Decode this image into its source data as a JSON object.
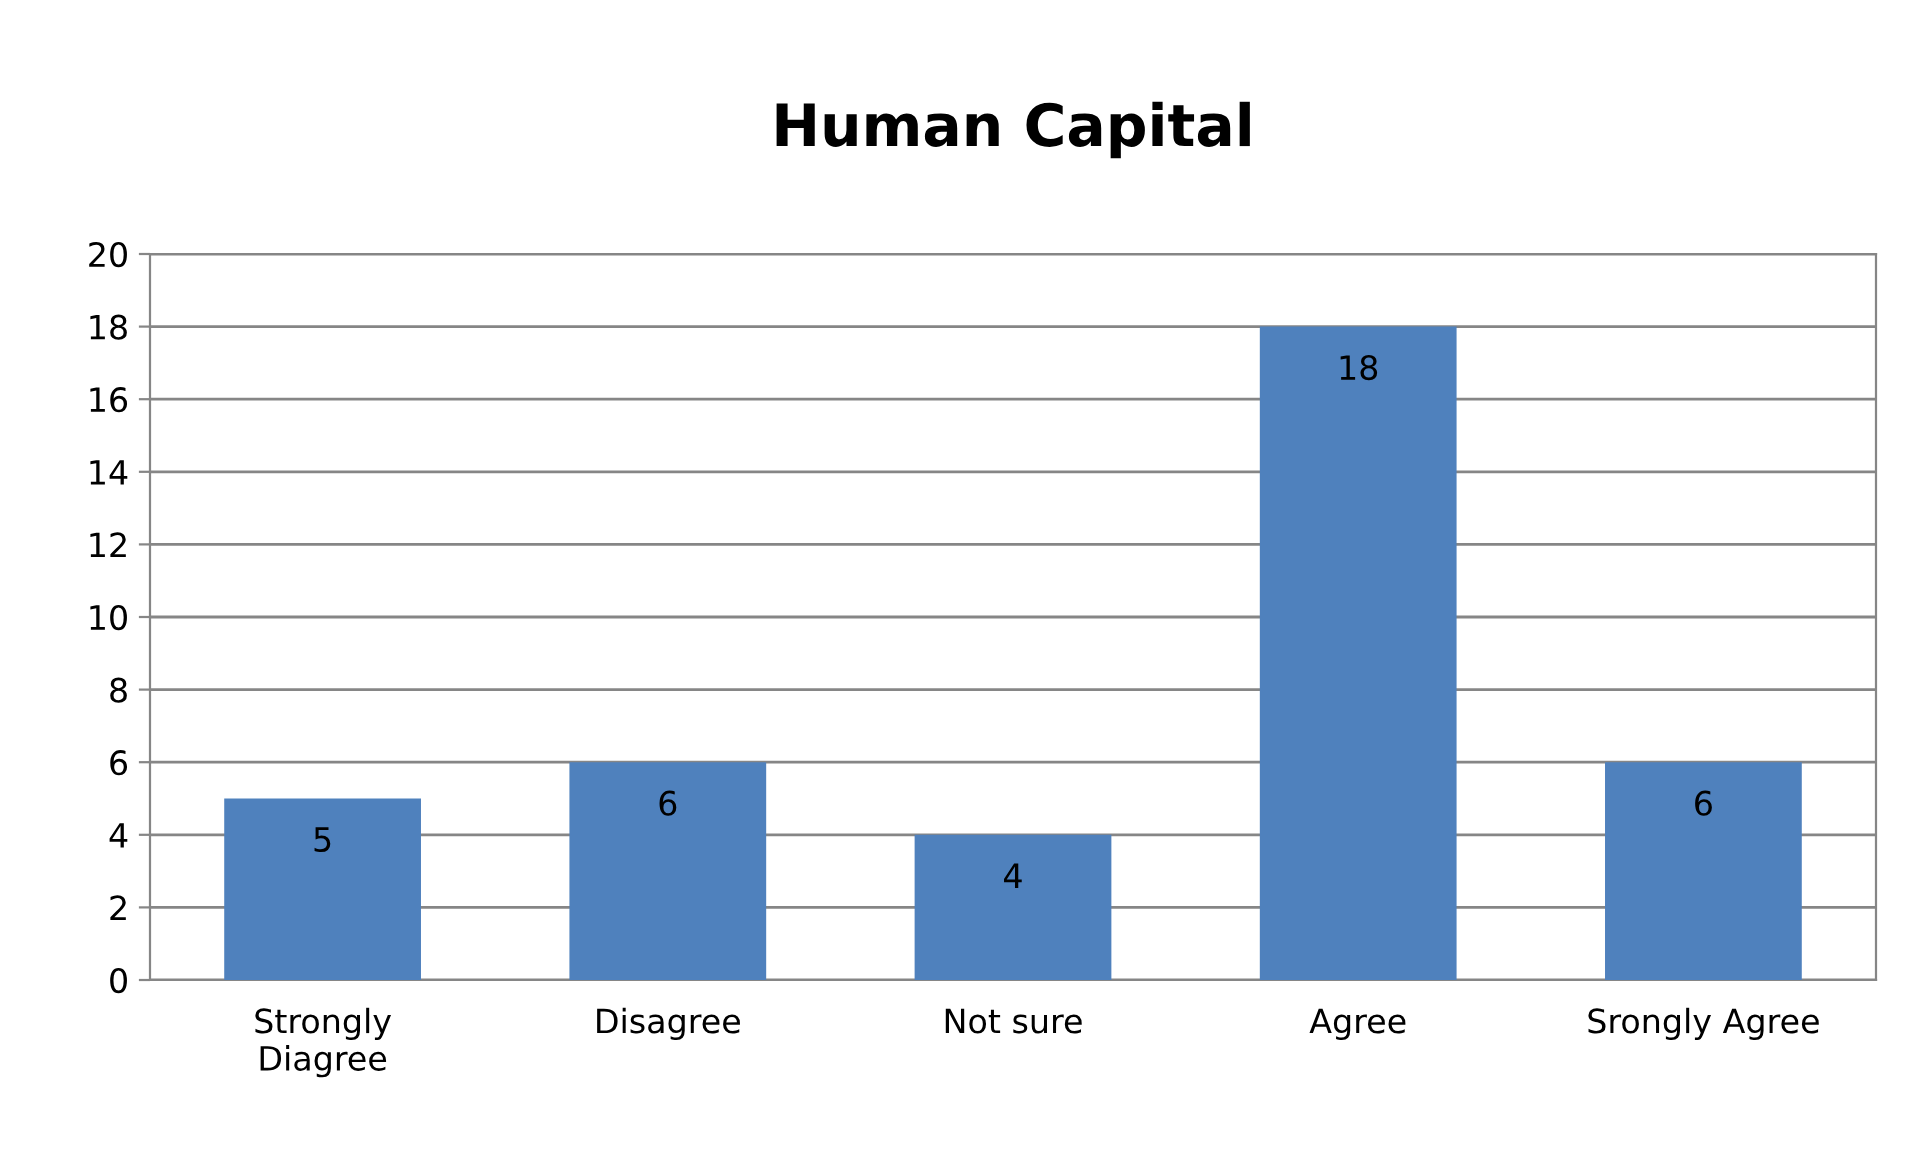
{
  "chart_data": {
    "type": "bar",
    "title": "Human Capital",
    "categories": [
      "Strongly Diagree",
      "Disagree",
      "Not sure",
      "Agree",
      "Srongly Agree"
    ],
    "values": [
      5,
      6,
      4,
      18,
      6
    ],
    "color": "#4f81bd",
    "ylim": [
      0,
      20
    ],
    "yticks": [
      0,
      2,
      4,
      6,
      8,
      10,
      12,
      14,
      16,
      18,
      20
    ],
    "grid": "y",
    "data_labels": true,
    "legend": false
  }
}
